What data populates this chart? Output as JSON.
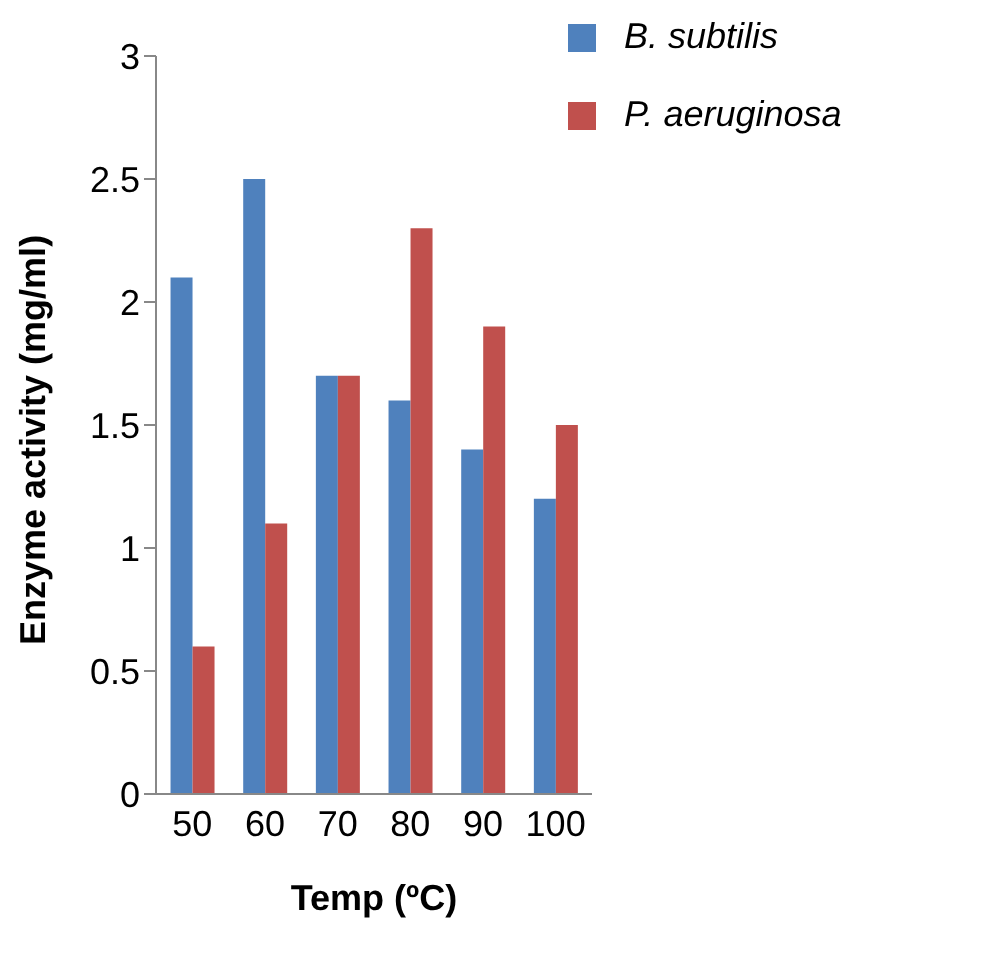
{
  "chart_data": {
    "type": "bar",
    "xlabel": "Temp (ºC)",
    "ylabel": "Enzyme activity (mg/ml)",
    "categories": [
      "50",
      "60",
      "70",
      "80",
      "90",
      "100"
    ],
    "series": [
      {
        "name": "B. subtilis",
        "color": "#4f81bd",
        "values": [
          2.1,
          2.5,
          1.7,
          1.6,
          1.4,
          1.2
        ]
      },
      {
        "name": "P. aeruginosa",
        "color": "#c0504d",
        "values": [
          0.6,
          1.1,
          1.7,
          2.3,
          1.9,
          1.5
        ]
      }
    ],
    "ylim": [
      0,
      3
    ],
    "yticks": [
      0,
      0.5,
      1,
      1.5,
      2,
      2.5,
      3
    ],
    "grid": false,
    "legend": "top right"
  }
}
